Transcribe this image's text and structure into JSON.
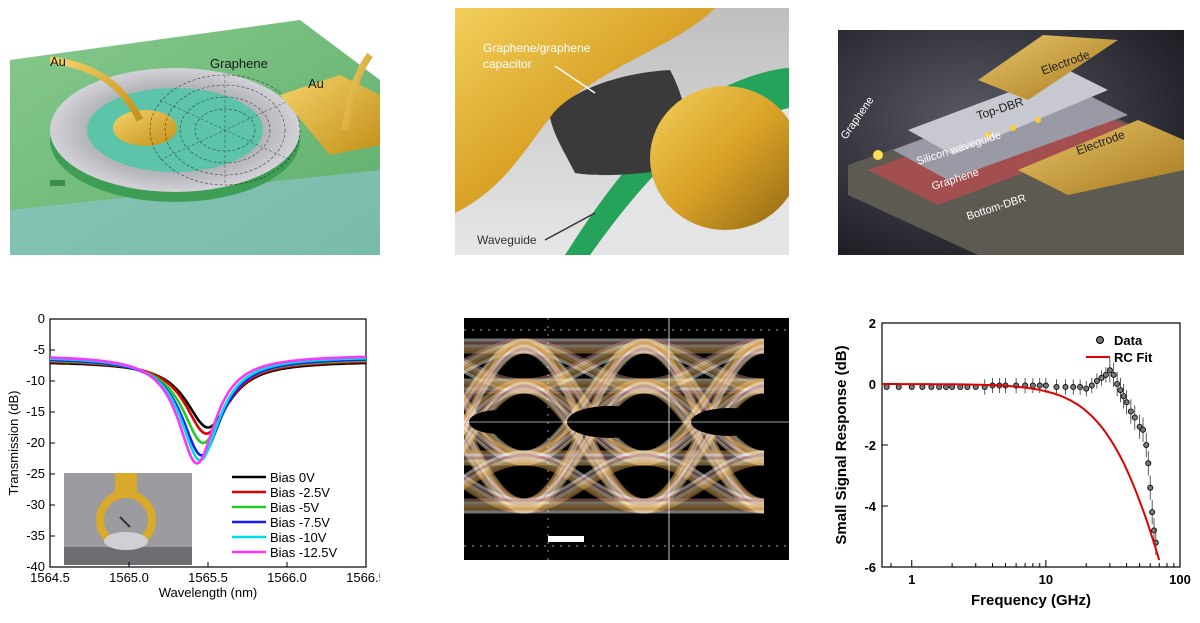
{
  "panels": {
    "a": {
      "label_au_left": "Au",
      "label_graphene": "Graphene",
      "label_au_right": "Au"
    },
    "b": {
      "label_capacitor_1": "Graphene/graphene",
      "label_capacitor_2": "capacitor",
      "label_waveguide": "Waveguide"
    },
    "c": {
      "label_electrode_top": "Electrode",
      "label_top_dbr": "Top-DBR",
      "label_graphene_left": "Graphene",
      "label_silicon_wg": "Silicon waveguide",
      "label_graphene_bottom": "Graphene",
      "label_electrode_right": "Electrode",
      "label_bottom_dbr": "Bottom-DBR"
    }
  },
  "chart_data": [
    {
      "type": "line",
      "title": "",
      "xlabel": "Wavelength (nm)",
      "ylabel": "Transmission (dB)",
      "xlim": [
        1564.5,
        1566.5
      ],
      "ylim": [
        -40,
        0
      ],
      "x_ticks": [
        1564.5,
        1565.0,
        1565.5,
        1566.0,
        1566.5
      ],
      "x_tick_labels": [
        "1564.5",
        "1565.0",
        "1565.5",
        "1566.0",
        "1566.5"
      ],
      "y_ticks": [
        0,
        -5,
        -10,
        -15,
        -20,
        -25,
        -30,
        -35,
        -40
      ],
      "y_tick_labels": [
        "0",
        "-5",
        "-10",
        "-15",
        "-20",
        "-25",
        "-30",
        "-35",
        "-40"
      ],
      "grid": false,
      "legend_position": "bottom-right",
      "series": [
        {
          "name": "Bias 0V",
          "color": "#000000",
          "center": 1565.5,
          "min": -17.5,
          "baseline": -6.8,
          "width": 0.17
        },
        {
          "name": "Bias -2.5V",
          "color": "#e00000",
          "center": 1565.49,
          "min": -18.5,
          "baseline": -6.6,
          "width": 0.165
        },
        {
          "name": "Bias -5V",
          "color": "#22cc22",
          "center": 1565.47,
          "min": -20.0,
          "baseline": -6.4,
          "width": 0.16
        },
        {
          "name": "Bias -7.5V",
          "color": "#1a1aff",
          "center": 1565.46,
          "min": -22.0,
          "baseline": -6.2,
          "width": 0.155
        },
        {
          "name": "Bias -10V",
          "color": "#00dddd",
          "center": 1565.45,
          "min": -22.8,
          "baseline": -6.0,
          "width": 0.15
        },
        {
          "name": "Bias -12.5V",
          "color": "#ff33ff",
          "center": 1565.43,
          "min": -23.3,
          "baseline": -5.8,
          "width": 0.145
        }
      ]
    },
    {
      "type": "scatter",
      "title": "",
      "xlabel": "",
      "ylabel": ""
    },
    {
      "type": "scatter",
      "title": "",
      "xlabel": "Frequency (GHz)",
      "ylabel": "Small Signal Response (dB)",
      "xscale": "log",
      "xlim": [
        0.6,
        100
      ],
      "ylim": [
        -6,
        2
      ],
      "x_ticks": [
        1,
        10,
        100
      ],
      "x_tick_labels": [
        "1",
        "10",
        "100"
      ],
      "y_ticks": [
        2,
        0,
        -2,
        -4,
        -6
      ],
      "y_tick_labels": [
        "2",
        "0",
        "-2",
        "-4",
        "-6"
      ],
      "grid": false,
      "legend_position": "top-right",
      "series": [
        {
          "name": "Data",
          "color": "#000000",
          "x": [
            0.65,
            0.8,
            1.0,
            1.2,
            1.4,
            1.6,
            1.8,
            2.0,
            2.3,
            2.6,
            3.0,
            3.5,
            4.0,
            4.5,
            5.0,
            6.0,
            7.0,
            8.0,
            9.0,
            10,
            12,
            14,
            16,
            18,
            20,
            22,
            24,
            26,
            28,
            30,
            32,
            34,
            36,
            38,
            40,
            43,
            46,
            50,
            53,
            56,
            58,
            60,
            62,
            64,
            66
          ],
          "y": [
            -0.1,
            -0.1,
            -0.1,
            -0.1,
            -0.1,
            -0.1,
            -0.1,
            -0.1,
            -0.1,
            -0.1,
            -0.1,
            -0.1,
            -0.05,
            -0.05,
            -0.05,
            -0.05,
            -0.05,
            -0.05,
            -0.05,
            -0.05,
            -0.1,
            -0.1,
            -0.1,
            -0.1,
            -0.15,
            -0.05,
            0.1,
            0.2,
            0.3,
            0.45,
            0.3,
            0.0,
            -0.2,
            -0.4,
            -0.6,
            -0.9,
            -1.1,
            -1.4,
            -1.5,
            -2.0,
            -2.6,
            -3.4,
            -4.2,
            -4.8,
            -5.2
          ]
        },
        {
          "name": "RC Fit",
          "color": "#e00000",
          "rc_cutoff_ghz": 42,
          "x_range": [
            0.6,
            70
          ]
        }
      ]
    }
  ],
  "eye": {
    "scale_bar": true
  }
}
